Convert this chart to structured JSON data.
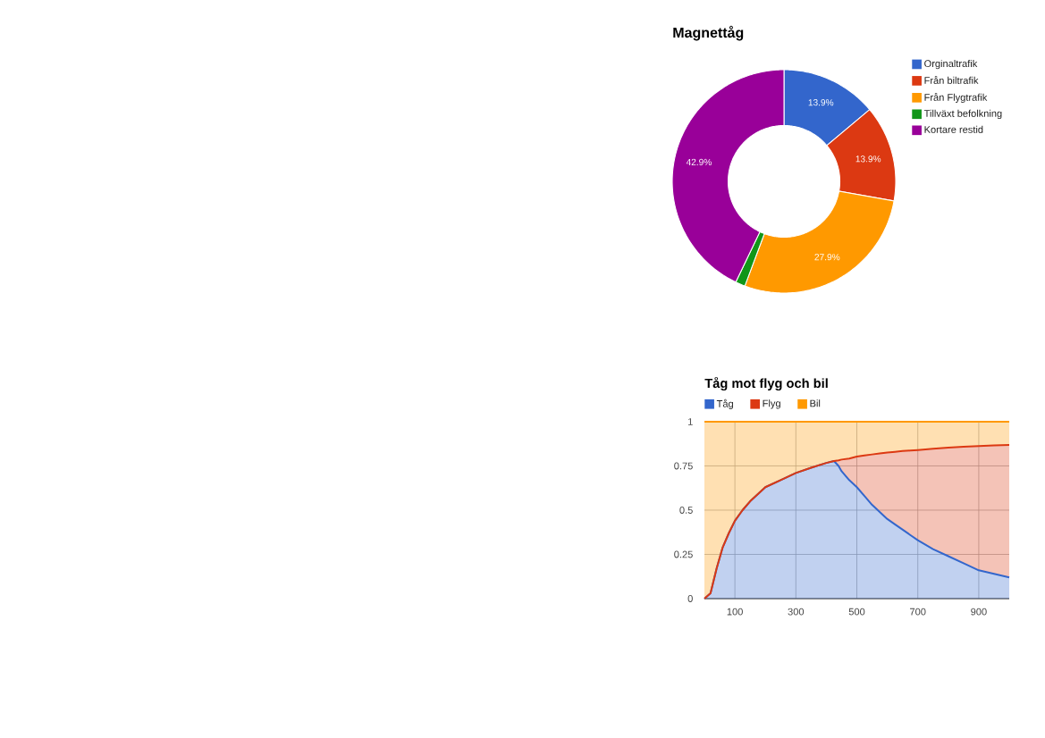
{
  "chart_data": [
    {
      "type": "donut",
      "title": "Magnettåg",
      "categories": [
        "Orginaltrafik",
        "Från biltrafik",
        "Från Flygtrafik",
        "Tillväxt befolkning",
        "Kortare restid"
      ],
      "values": [
        13.9,
        13.9,
        27.9,
        1.4,
        42.9
      ],
      "colors": [
        "#3366cc",
        "#dc3912",
        "#ff9900",
        "#109618",
        "#990099"
      ],
      "value_labels": [
        "13.9%",
        "13.9%",
        "27.9%",
        null,
        "42.9%"
      ],
      "legend": "right"
    },
    {
      "type": "area",
      "title": "Tåg mot flyg och bil",
      "stacked": true,
      "x": [
        0,
        20,
        40,
        60,
        80,
        100,
        125,
        150,
        200,
        250,
        300,
        350,
        400,
        425,
        440,
        450,
        475,
        500,
        525,
        550,
        575,
        600,
        625,
        650,
        675,
        700,
        750,
        800,
        850,
        900,
        950,
        1000
      ],
      "series": [
        {
          "name": "Tåg",
          "color": "#3366cc",
          "values": [
            0,
            0.03,
            0.17,
            0.29,
            0.37,
            0.44,
            0.5,
            0.55,
            0.63,
            0.67,
            0.71,
            0.74,
            0.767,
            0.778,
            0.75,
            0.72,
            0.67,
            0.63,
            0.58,
            0.53,
            0.49,
            0.45,
            0.42,
            0.39,
            0.36,
            0.33,
            0.28,
            0.24,
            0.2,
            0.16,
            0.14,
            0.12
          ]
        },
        {
          "name": "Flyg",
          "color": "#dc3912",
          "values": [
            0,
            0,
            0,
            0,
            0,
            0,
            0,
            0,
            0,
            0,
            0,
            0,
            0,
            0,
            0.032,
            0.066,
            0.122,
            0.173,
            0.229,
            0.285,
            0.331,
            0.376,
            0.41,
            0.444,
            0.477,
            0.51,
            0.567,
            0.613,
            0.658,
            0.702,
            0.726,
            0.749
          ]
        },
        {
          "name": "Bil",
          "color": "#ff9900",
          "values": [
            1,
            0.97,
            0.83,
            0.71,
            0.63,
            0.56,
            0.5,
            0.45,
            0.37,
            0.33,
            0.29,
            0.26,
            0.233,
            0.222,
            0.218,
            0.214,
            0.208,
            0.197,
            0.191,
            0.185,
            0.179,
            0.174,
            0.17,
            0.166,
            0.163,
            0.16,
            0.153,
            0.147,
            0.142,
            0.138,
            0.134,
            0.131
          ]
        }
      ],
      "xlim": [
        0,
        1000
      ],
      "xticks": [
        100,
        300,
        500,
        700,
        900
      ],
      "ylim": [
        0,
        1
      ],
      "yticks": [
        0,
        0.25,
        0.5,
        0.75,
        1
      ],
      "grid": true,
      "legend": "top"
    }
  ]
}
